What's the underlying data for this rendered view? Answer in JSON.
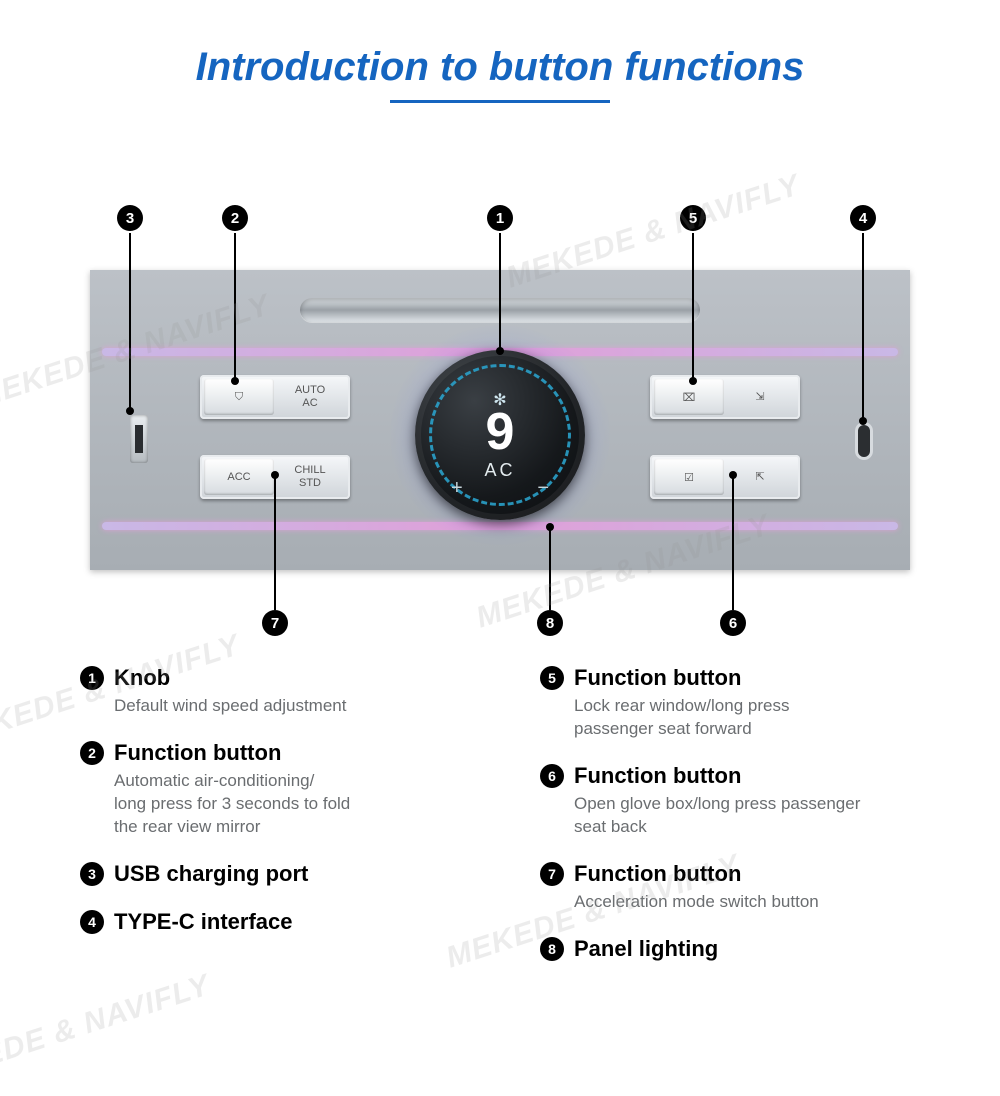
{
  "title": "Introduction to button functions",
  "watermark": "MEKEDE & NAVIFLY",
  "panel": {
    "knob": {
      "value": "9",
      "mode": "AC",
      "fan_icon": "✻",
      "plus": "+",
      "minus": "−"
    },
    "buttons": {
      "b2_sub": "⛉",
      "b2_label": "AUTO\nAC",
      "b7_sub": "ACC",
      "b7_label": "CHILL\nSTD",
      "b5_sub": "⌧",
      "b5_label": "⇲",
      "b6_sub": "☑",
      "b6_label": "⇱"
    }
  },
  "callouts": {
    "1": "1",
    "2": "2",
    "3": "3",
    "4": "4",
    "5": "5",
    "6": "6",
    "7": "7",
    "8": "8"
  },
  "legend": {
    "left": [
      {
        "num": "1",
        "title": "Knob",
        "desc": "Default wind speed adjustment"
      },
      {
        "num": "2",
        "title": "Function button",
        "desc": "Automatic air-conditioning/\nlong press for 3 seconds to fold\nthe rear view mirror"
      },
      {
        "num": "3",
        "title": "USB charging port",
        "desc": ""
      },
      {
        "num": "4",
        "title": "TYPE-C interface",
        "desc": ""
      }
    ],
    "right": [
      {
        "num": "5",
        "title": "Function button",
        "desc": "Lock rear window/long press\npassenger seat forward"
      },
      {
        "num": "6",
        "title": "Function button",
        "desc": "Open glove box/long press passenger\nseat back"
      },
      {
        "num": "7",
        "title": "Function button",
        "desc": "Acceleration mode switch button"
      },
      {
        "num": "8",
        "title": "Panel lighting",
        "desc": ""
      }
    ]
  },
  "style": {
    "title_color": "#1565c0",
    "accent_glow": "#4f6cff",
    "stripe_color": "#e09fd8"
  }
}
